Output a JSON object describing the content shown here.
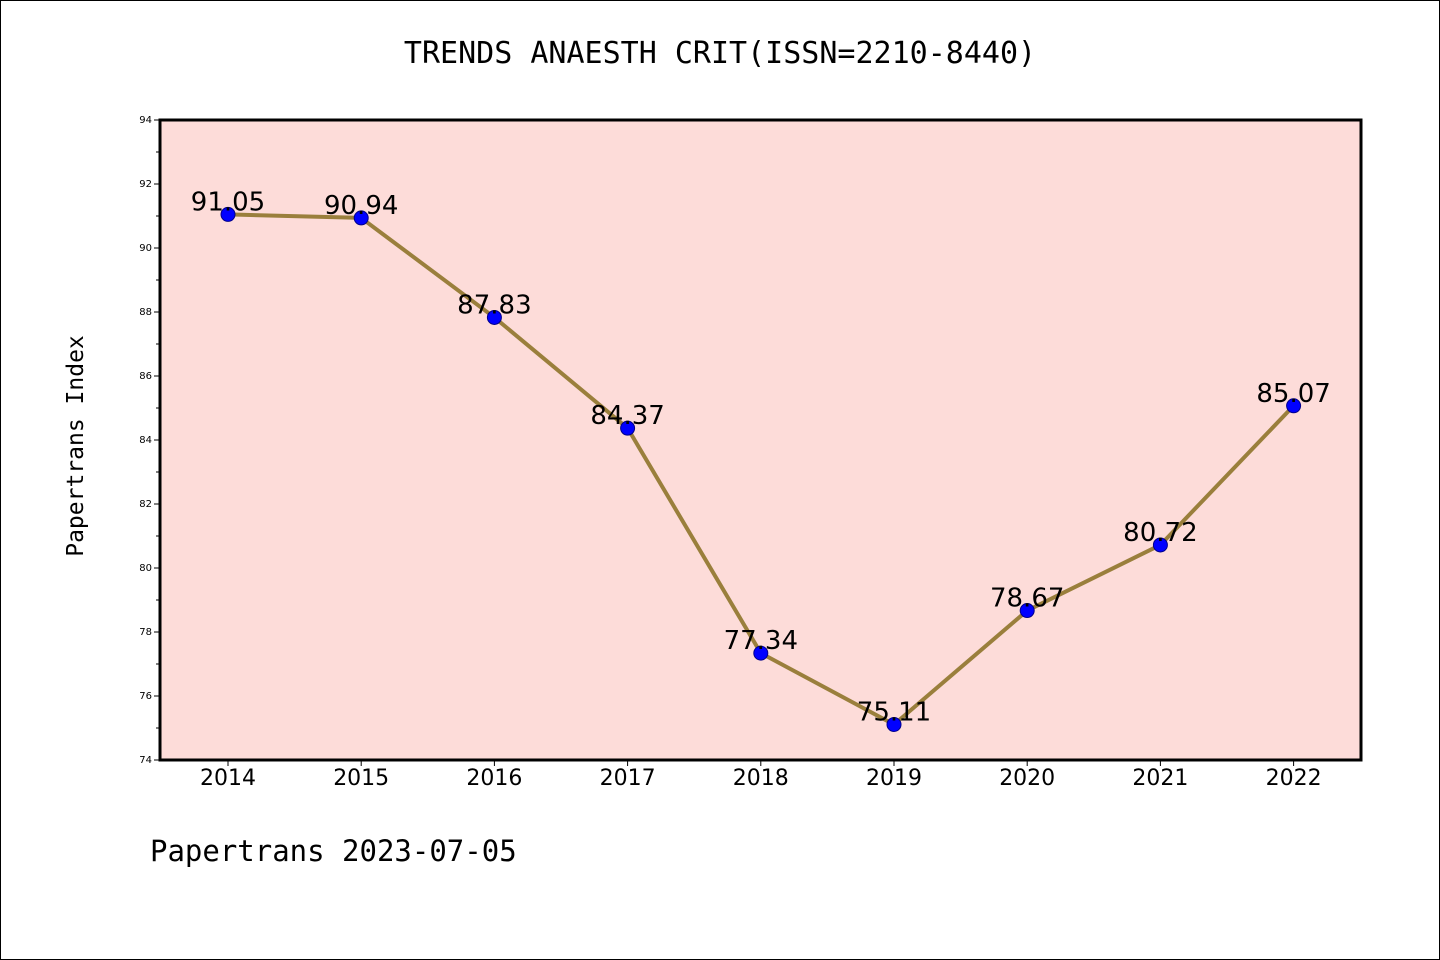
{
  "chart_data": {
    "type": "line",
    "title": "TRENDS ANAESTH CRIT(ISSN=2210-8440)",
    "xlabel": "",
    "ylabel": "Papertrans Index",
    "categories": [
      "2014",
      "2015",
      "2016",
      "2017",
      "2018",
      "2019",
      "2020",
      "2021",
      "2022"
    ],
    "values": [
      91.05,
      90.94,
      87.83,
      84.37,
      77.34,
      75.11,
      78.67,
      80.72,
      85.07
    ],
    "data_labels": [
      "91.05",
      "90.94",
      "87.83",
      "84.37",
      "77.34",
      "75.11",
      "78.67",
      "80.72",
      "85.07"
    ],
    "ylim": [
      74,
      94
    ],
    "yticks": [
      74,
      76,
      78,
      80,
      82,
      84,
      86,
      88,
      90,
      92,
      94
    ],
    "grid": false,
    "colors": {
      "plot_background": "#fddcd9",
      "line": "#9a7f3c",
      "marker": "#0000ff"
    }
  },
  "footer": "Papertrans 2023-07-05"
}
